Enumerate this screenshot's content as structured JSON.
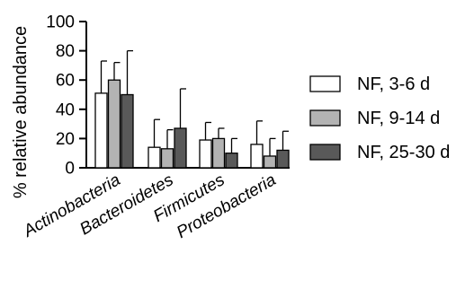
{
  "chart_data": {
    "type": "bar",
    "ylabel": "% relative abundance",
    "ylim": [
      0,
      100
    ],
    "yticks": [
      "0",
      "20",
      "40",
      "60",
      "80",
      "100"
    ],
    "categories": [
      "Actinobacteria",
      "Bacteroidetes",
      "Firmicutes",
      "Proteobacteria"
    ],
    "series": [
      {
        "name": "NF, 3-6 d",
        "color": "#ffffff",
        "values": [
          51,
          14,
          19,
          16
        ],
        "error_upper": [
          73,
          33,
          31,
          32
        ]
      },
      {
        "name": "NF, 9-14 d",
        "color": "#b3b3b3",
        "values": [
          60,
          13,
          20,
          8
        ],
        "error_upper": [
          72,
          26,
          27,
          20
        ]
      },
      {
        "name": "NF, 25-30 d",
        "color": "#595959",
        "values": [
          50,
          27,
          10,
          12
        ],
        "error_upper": [
          80,
          54,
          20,
          25
        ]
      }
    ],
    "legend_position": "right",
    "grid": false,
    "category_label_style": "italic, rotated"
  }
}
